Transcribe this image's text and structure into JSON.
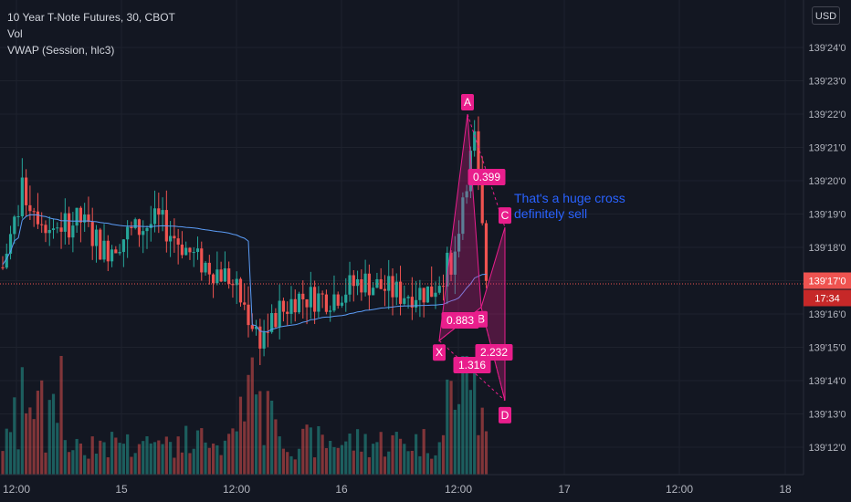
{
  "legend": {
    "symbol": "10 Year T-Note Futures, 30, CBOT",
    "volume": "Vol",
    "vwap": "VWAP (Session, hlc3)"
  },
  "currency": "USD",
  "colors": {
    "background": "#131722",
    "bull": "#26a69a",
    "bear": "#ef5350",
    "vwap": "#5b9cf6",
    "pattern": "#e91e8c",
    "grid": "#1e222d",
    "axis_text": "#b2b5be",
    "note_text": "#2962ff"
  },
  "chart_data": {
    "type": "candlestick",
    "title": "10 Year T-Note Futures, 30, CBOT",
    "x_tick_labels": [
      "12:00",
      "15",
      "12:00",
      "16",
      "12:00",
      "17",
      "12:00",
      "18"
    ],
    "y_tick_labels": [
      "139'12'0",
      "139'13'0",
      "139'14'0",
      "139'15'0",
      "139'16'0",
      "139'17'0",
      "139'18'0",
      "139'19'0",
      "139'20'0",
      "139'21'0",
      "139'22'0",
      "139'23'0",
      "139'24'0"
    ],
    "y_range_32nds": [
      11.2,
      25.3
    ],
    "last_price": "139'17'0",
    "countdown": "17:34",
    "harmonic_pattern": {
      "points": [
        {
          "label": "X",
          "price_32nds": 15.2
        },
        {
          "label": "A",
          "price_32nds": 22.0
        },
        {
          "label": "B",
          "price_32nds": 16.2
        },
        {
          "label": "C",
          "price_32nds": 18.6
        },
        {
          "label": "D",
          "price_32nds": 13.4
        }
      ],
      "ratios": [
        "0.399",
        "0.883",
        "2.232",
        "1.316"
      ]
    },
    "annotation": "That's a huge cross\ndefinitely sell"
  }
}
